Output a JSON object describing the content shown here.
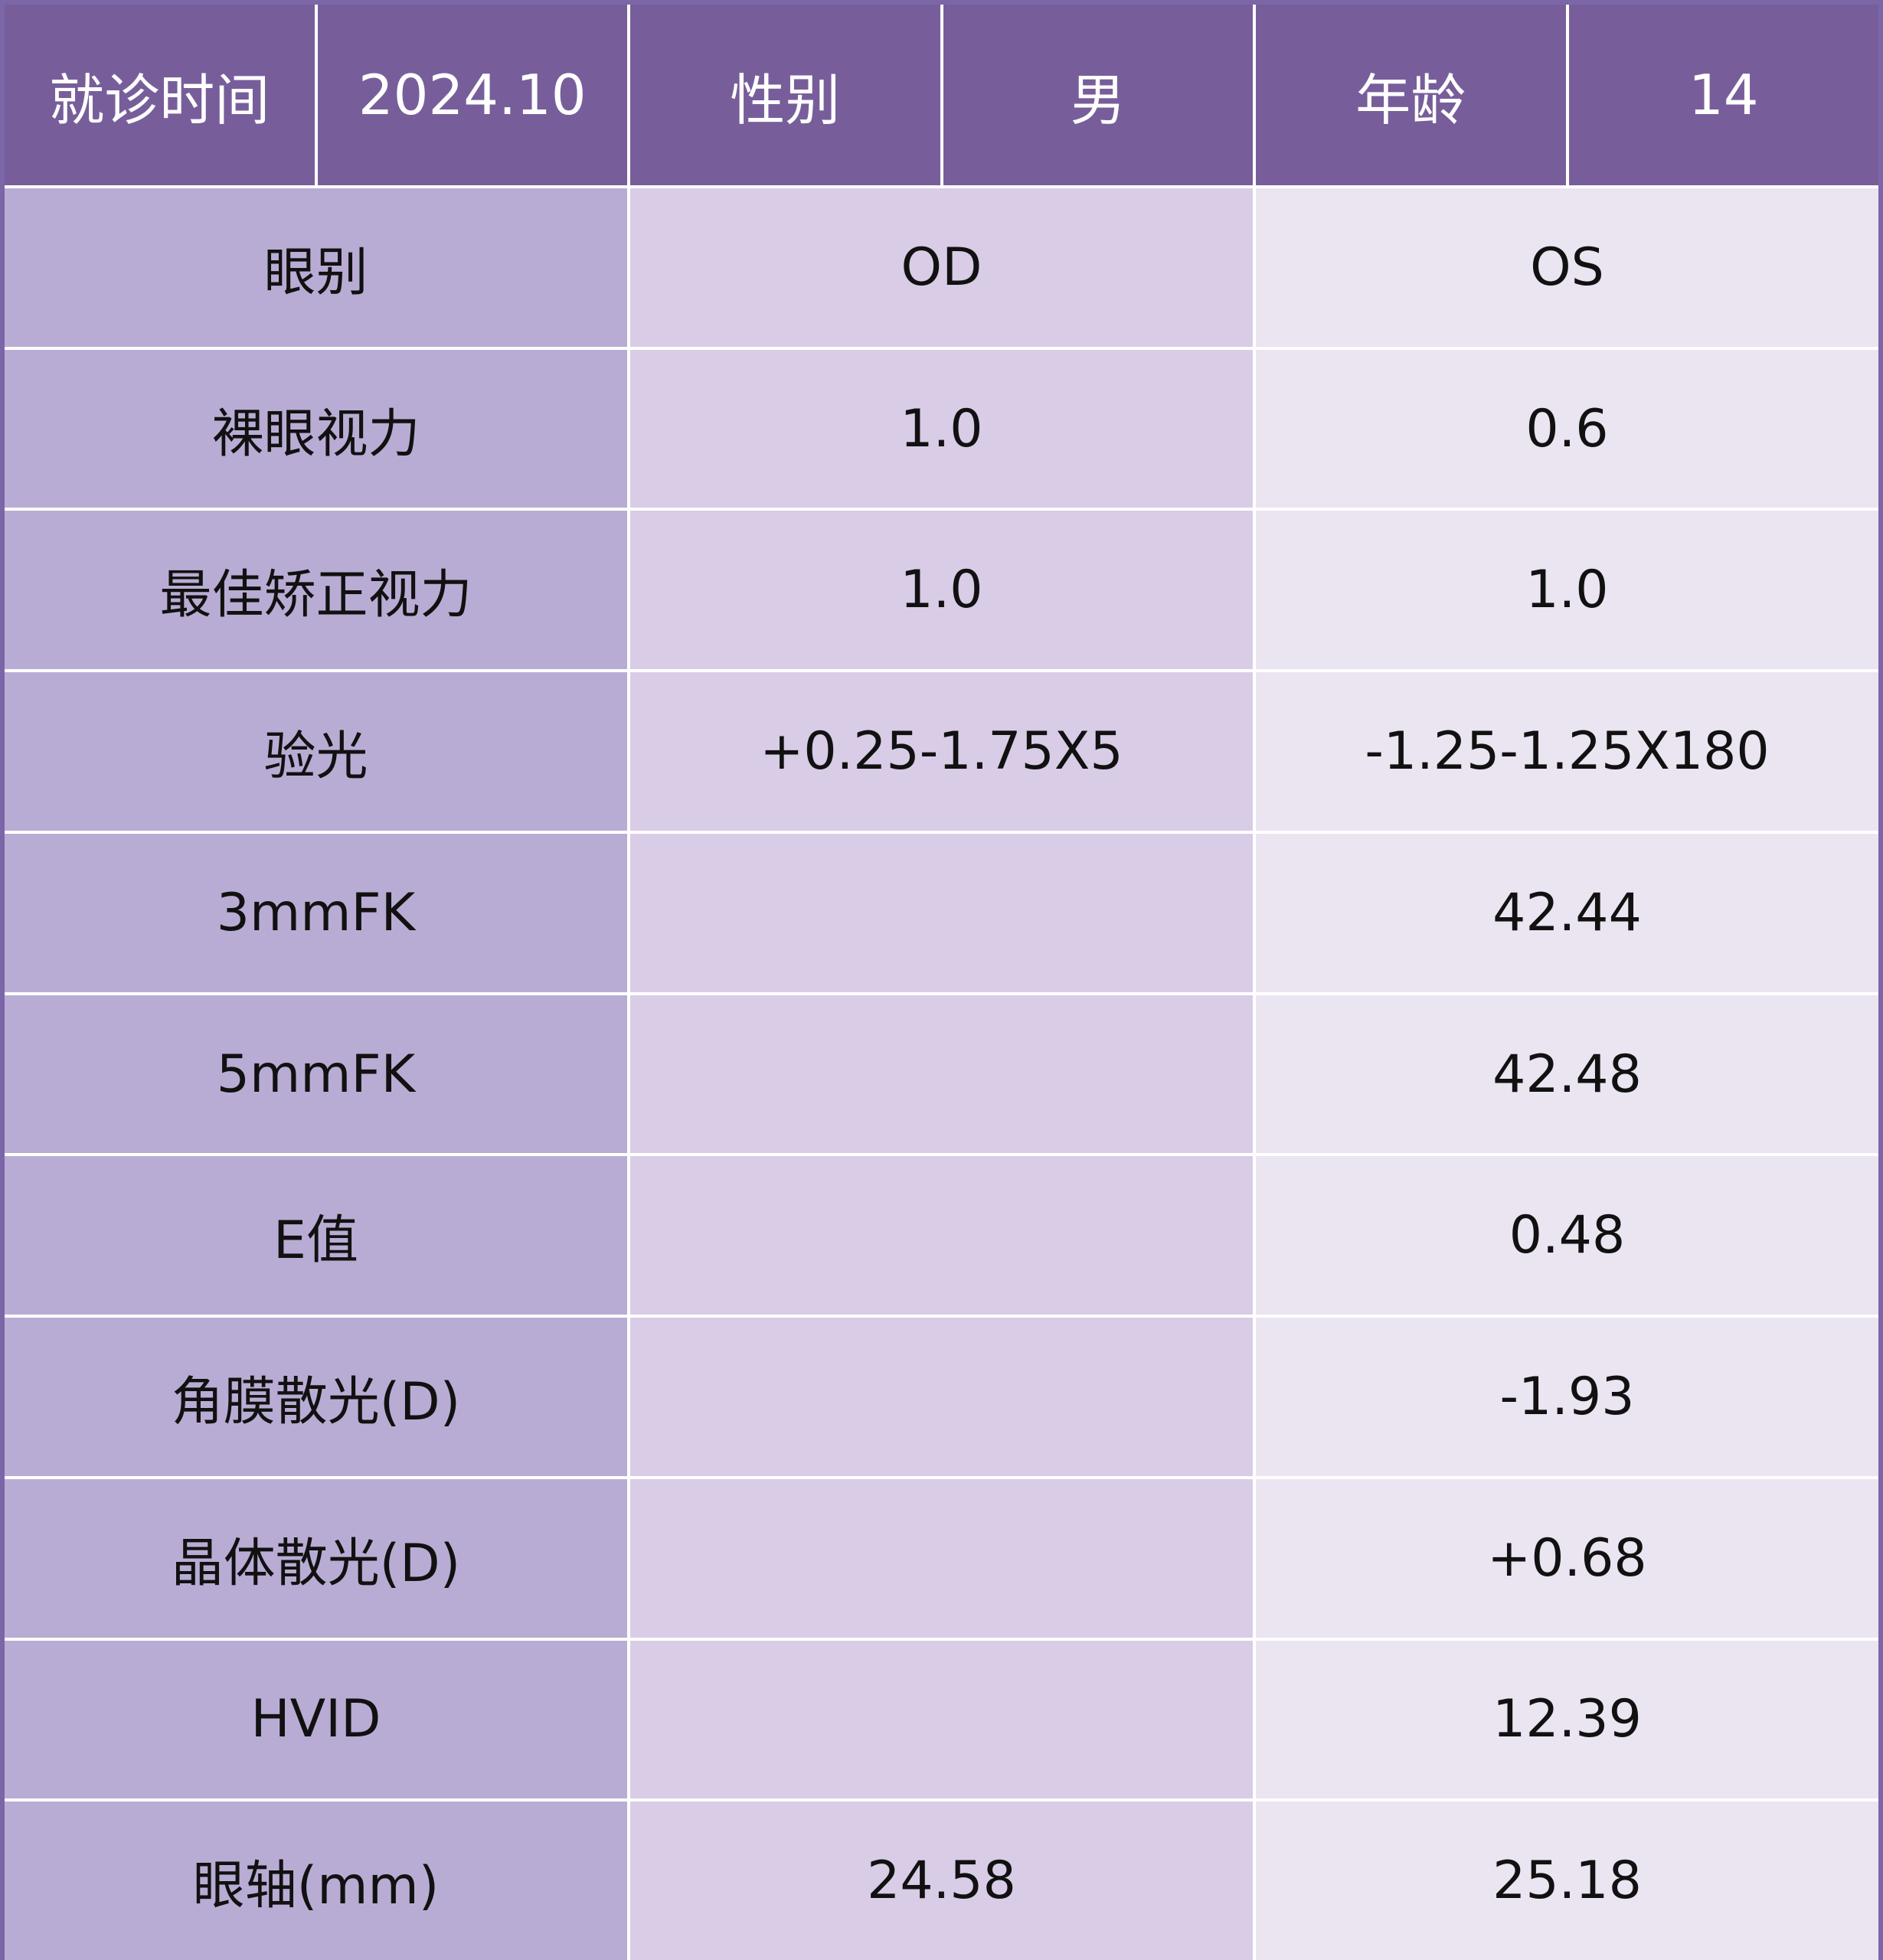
{
  "header": {
    "visit_label": "就诊时间",
    "visit_value": "2024.10",
    "gender_label": "性别",
    "gender_value": "男",
    "age_label": "年龄",
    "age_value": "14"
  },
  "rows": [
    {
      "label": "眼别",
      "od": "OD",
      "os": "OS"
    },
    {
      "label": "裸眼视力",
      "od": "1.0",
      "os": "0.6"
    },
    {
      "label": "最佳矫正视力",
      "od": "1.0",
      "os": "1.0"
    },
    {
      "label": "验光",
      "od": "+0.25-1.75X5",
      "os": "-1.25-1.25X180"
    },
    {
      "label": "3mmFK",
      "od": "",
      "os": "42.44"
    },
    {
      "label": "5mmFK",
      "od": "",
      "os": "42.48"
    },
    {
      "label": "E值",
      "od": "",
      "os": "0.48"
    },
    {
      "label": "角膜散光(D)",
      "od": "",
      "os": "-1.93"
    },
    {
      "label": "晶体散光(D)",
      "od": "",
      "os": "+0.68"
    },
    {
      "label": "HVID",
      "od": "",
      "os": "12.39"
    },
    {
      "label": "眼轴(mm)",
      "od": "24.58",
      "os": "25.18"
    }
  ],
  "colors": {
    "header_bg": "#775e9b",
    "label_col_bg": "#b9acd4",
    "od_col_bg": "#d9cce6",
    "os_col_bg": "#ebe4f1",
    "frame": "#7b66a7"
  }
}
